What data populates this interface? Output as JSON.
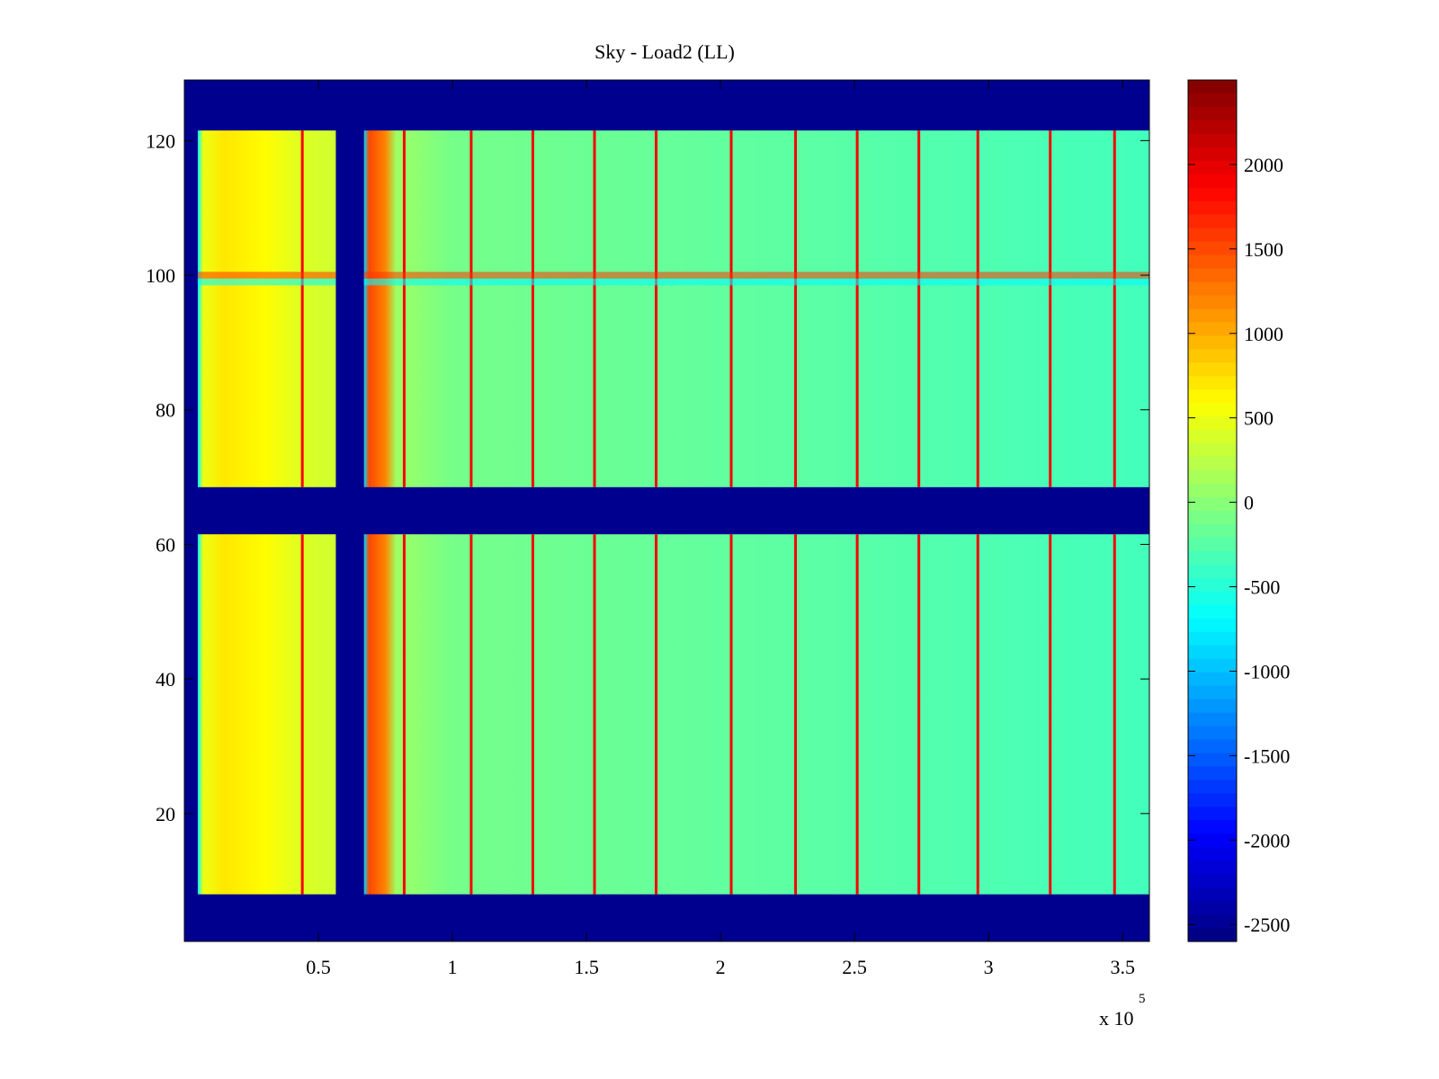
{
  "chart_data": {
    "type": "heatmap",
    "title": "Sky - Load2 (LL)",
    "xlabel": "",
    "ylabel": "",
    "x_exponent_label": "x 10",
    "x_exponent_power": "5",
    "xlim": [
      0,
      360000
    ],
    "ylim": [
      1,
      129
    ],
    "x_ticks": [
      {
        "value": 50000,
        "label": "0.5"
      },
      {
        "value": 100000,
        "label": "1"
      },
      {
        "value": 150000,
        "label": "1.5"
      },
      {
        "value": 200000,
        "label": "2"
      },
      {
        "value": 250000,
        "label": "2.5"
      },
      {
        "value": 300000,
        "label": "3"
      },
      {
        "value": 350000,
        "label": "3.5"
      }
    ],
    "y_ticks": [
      {
        "value": 20,
        "label": "20"
      },
      {
        "value": 40,
        "label": "40"
      },
      {
        "value": 60,
        "label": "60"
      },
      {
        "value": 80,
        "label": "80"
      },
      {
        "value": 100,
        "label": "100"
      },
      {
        "value": 120,
        "label": "120"
      }
    ],
    "colorbar": {
      "colormap": "jet",
      "range": [
        -2600,
        2500
      ],
      "ticks": [
        {
          "value": 2000,
          "label": "2000"
        },
        {
          "value": 1500,
          "label": "1500"
        },
        {
          "value": 1000,
          "label": "1000"
        },
        {
          "value": 500,
          "label": "500"
        },
        {
          "value": 0,
          "label": "0"
        },
        {
          "value": -500,
          "label": "-500"
        },
        {
          "value": -1000,
          "label": "-1000"
        },
        {
          "value": -1500,
          "label": "-1500"
        },
        {
          "value": -2000,
          "label": "-2000"
        },
        {
          "value": -2500,
          "label": "-2500"
        }
      ]
    },
    "background_value": -2600,
    "valid_rows": [
      [
        8,
        61.5
      ],
      [
        68.5,
        121.5
      ]
    ],
    "valid_cols": [
      [
        5000,
        56500
      ],
      [
        67000,
        360000
      ]
    ],
    "column_profile": [
      {
        "x": 5000,
        "value": -700
      },
      {
        "x": 7000,
        "value": 500
      },
      {
        "x": 15000,
        "value": 700
      },
      {
        "x": 30000,
        "value": 600
      },
      {
        "x": 45000,
        "value": 400
      },
      {
        "x": 56500,
        "value": 350
      },
      {
        "x": 67000,
        "value": -900
      },
      {
        "x": 69000,
        "value": 1500
      },
      {
        "x": 75000,
        "value": 1200
      },
      {
        "x": 79000,
        "value": 100
      },
      {
        "x": 100000,
        "value": -100
      },
      {
        "x": 200000,
        "value": -200
      },
      {
        "x": 300000,
        "value": -300
      },
      {
        "x": 360000,
        "value": -350
      }
    ],
    "stripe_columns": [
      44000,
      82000,
      107000,
      130000,
      153000,
      176000,
      204000,
      228000,
      251000,
      274000,
      296000,
      323000,
      347000
    ],
    "stripe_value": 1900,
    "hot_row": {
      "y": 100,
      "value": 1600
    },
    "cool_row": {
      "y": 99,
      "value": -700
    }
  }
}
